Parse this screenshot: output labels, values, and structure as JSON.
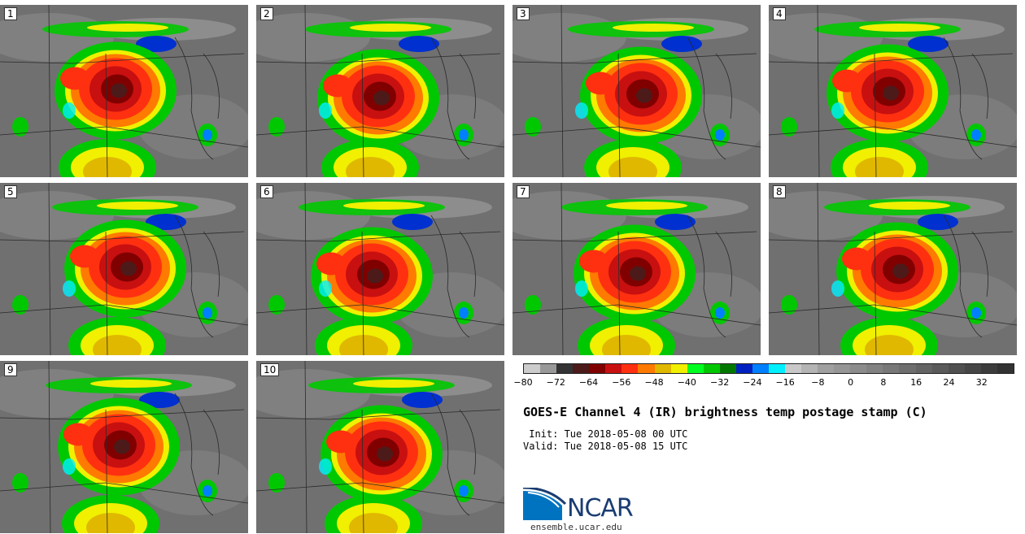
{
  "panels": [
    {
      "label": "1"
    },
    {
      "label": "2"
    },
    {
      "label": "3"
    },
    {
      "label": "4"
    },
    {
      "label": "5"
    },
    {
      "label": "6"
    },
    {
      "label": "7"
    },
    {
      "label": "8"
    },
    {
      "label": "9"
    },
    {
      "label": "10"
    }
  ],
  "colorbar": {
    "colors": [
      "#cccccc",
      "#999999",
      "#333333",
      "#4d1a1a",
      "#800000",
      "#c81010",
      "#ff3010",
      "#ff7a00",
      "#e0b800",
      "#f0f000",
      "#00ff20",
      "#00c800",
      "#007800",
      "#0020c0",
      "#0080ff",
      "#00f0ff",
      "#c8c8c8",
      "#b4b4b4",
      "#a0a0a0",
      "#969696",
      "#8c8c8c",
      "#828282",
      "#787878",
      "#6e6e6e",
      "#646464",
      "#5a5a5a",
      "#505050",
      "#464646",
      "#3c3c3c",
      "#323232"
    ],
    "tick_labels": [
      "−80",
      "−72",
      "−64",
      "−56",
      "−48",
      "−40",
      "−32",
      "−24",
      "−16",
      "−8",
      "0",
      "8",
      "16",
      "24",
      "32"
    ],
    "range": [
      -80,
      40
    ]
  },
  "title": "GOES-E Channel 4 (IR) brightness temp postage stamp (C)",
  "init": " Init: Tue 2018-05-08 00 UTC",
  "valid": "Valid: Tue 2018-05-08 15 UTC",
  "logo": {
    "text": "NCAR",
    "color": "#1a3c72"
  },
  "site": "ensemble.ucar.edu"
}
